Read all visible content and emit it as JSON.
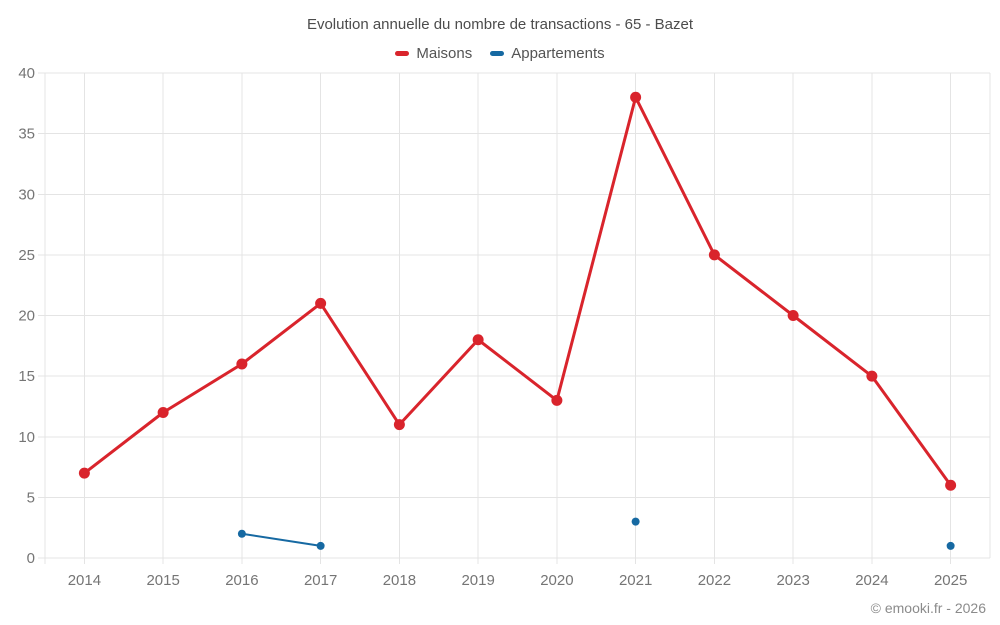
{
  "title": "Evolution annuelle du nombre de transactions - 65 - Bazet",
  "footer": "© emooki.fr - 2026",
  "chart_data": {
    "type": "line",
    "title": "Evolution annuelle du nombre de transactions - 65 - Bazet",
    "xlabel": "",
    "ylabel": "",
    "categories": [
      "2014",
      "2015",
      "2016",
      "2017",
      "2018",
      "2019",
      "2020",
      "2021",
      "2022",
      "2023",
      "2024",
      "2025"
    ],
    "series": [
      {
        "name": "Maisons",
        "color": "#d9242c",
        "line_width": 3,
        "point_radius": 5.5,
        "values": [
          7,
          12,
          16,
          21,
          11,
          18,
          13,
          38,
          25,
          20,
          15,
          6
        ]
      },
      {
        "name": "Appartements",
        "color": "#1669a2",
        "line_width": 2,
        "point_radius": 4,
        "values": [
          null,
          null,
          2,
          1,
          null,
          null,
          null,
          3,
          null,
          null,
          null,
          1
        ]
      }
    ],
    "y_ticks": [
      0,
      5,
      10,
      15,
      20,
      25,
      30,
      35,
      40
    ],
    "ylim": [
      0,
      40
    ],
    "grid": true,
    "legend_position": "top",
    "colors": {
      "grid": "#e4e4e4",
      "tick_text": "#757575",
      "background": "#ffffff"
    }
  }
}
